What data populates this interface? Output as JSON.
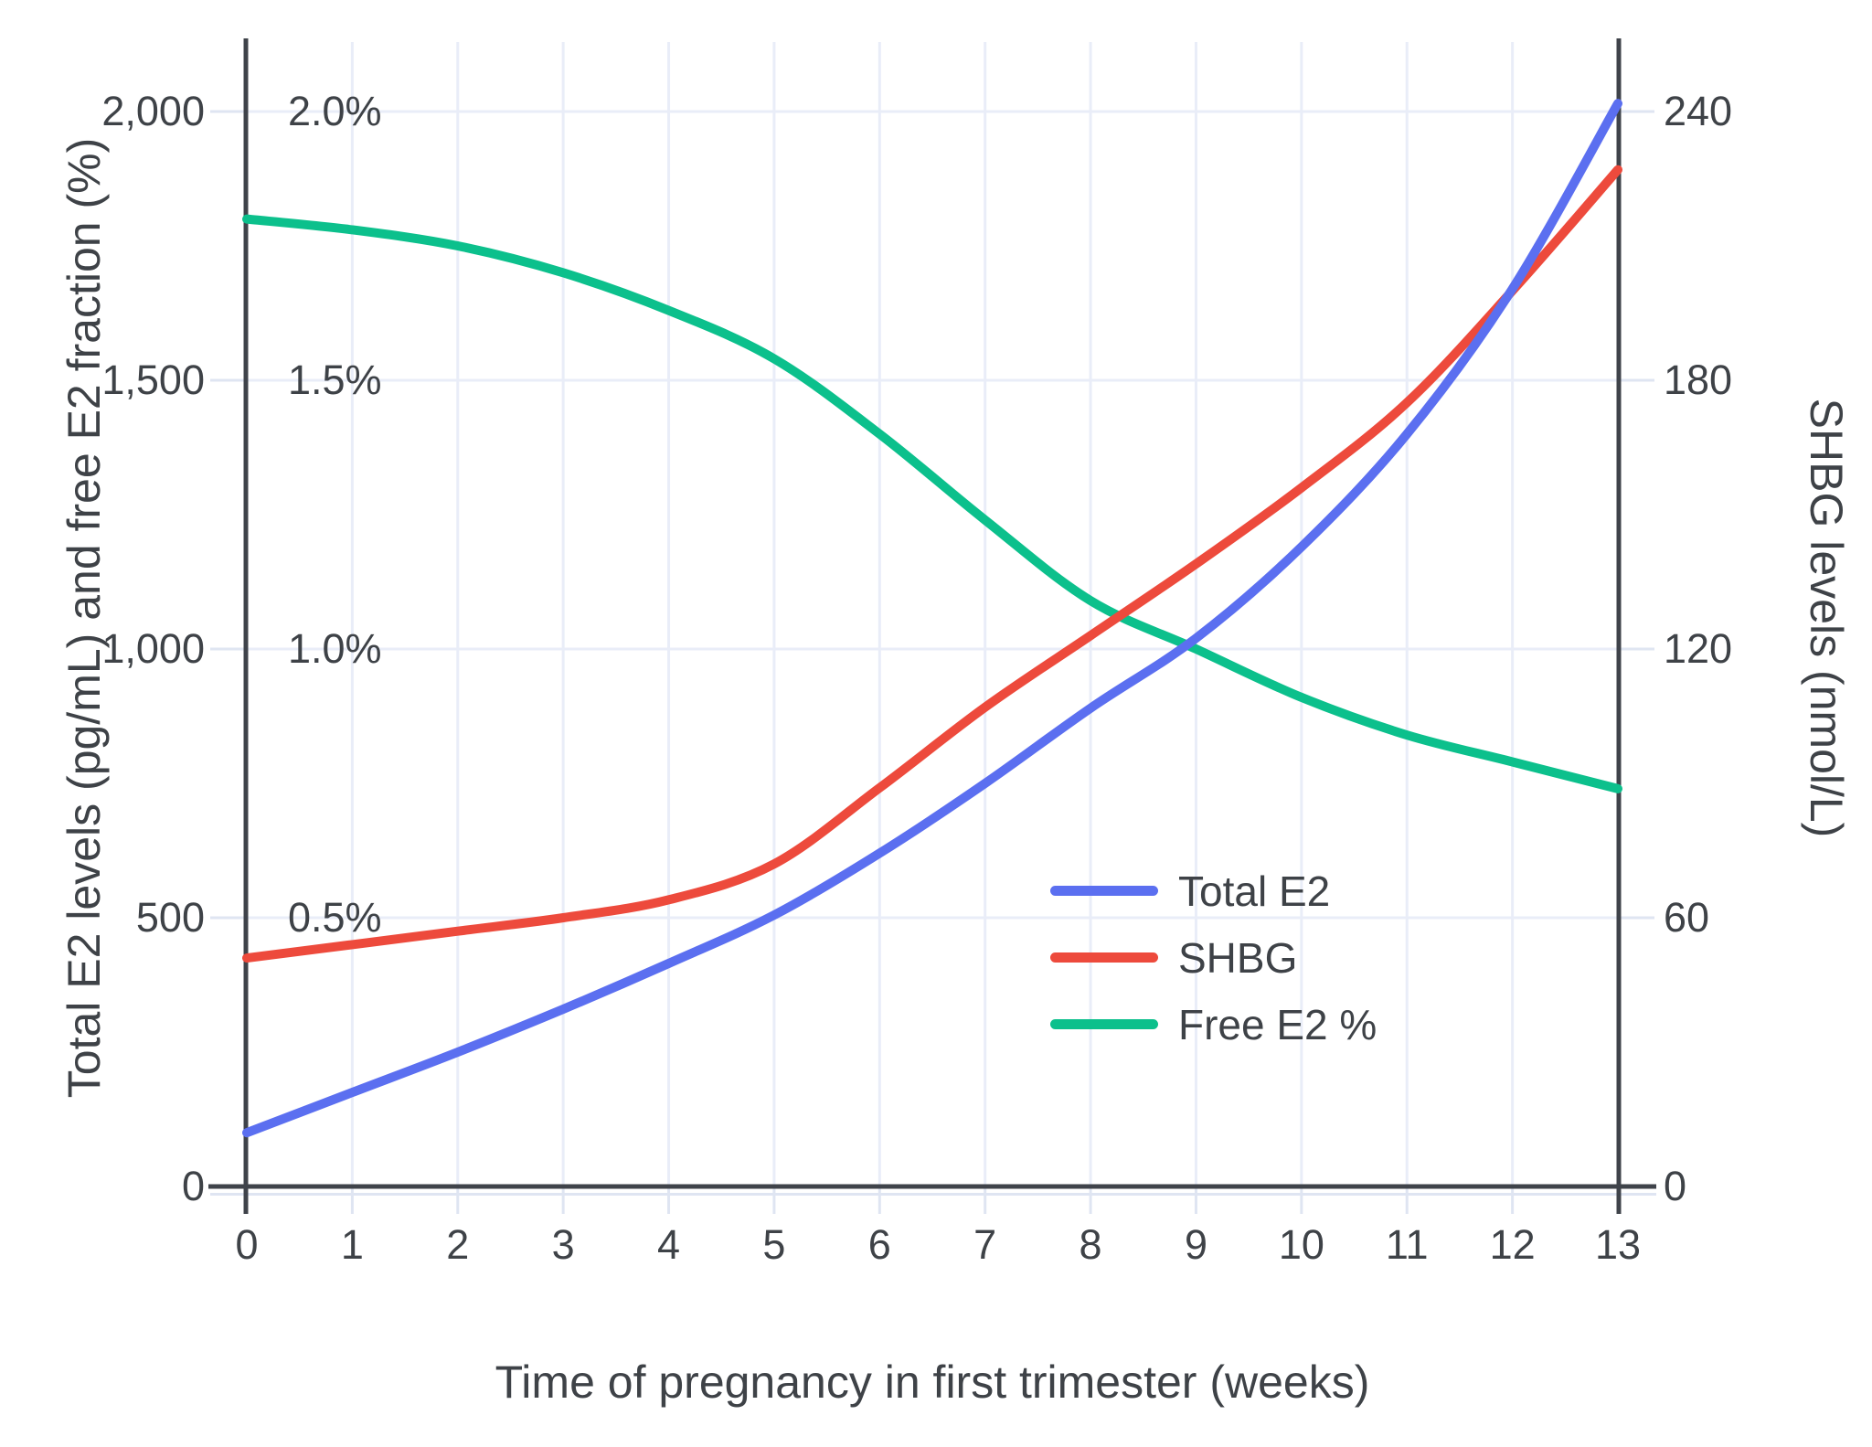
{
  "chart_data": {
    "type": "line",
    "x": [
      0,
      1,
      2,
      3,
      4,
      5,
      6,
      7,
      8,
      9,
      10,
      11,
      12,
      13
    ],
    "xlabel": "Time of pregnancy in first trimester (weeks)",
    "ylabel_left": "Total E2 levels (pg/mL) and free E2 fraction (%)",
    "ylabel_right": "SHBG levels (nmol/L)",
    "grid": true,
    "legend_position": "center-right",
    "series": [
      {
        "name": "Total E2",
        "axis": "left",
        "unit": "pg/mL",
        "color": "#5b6ff0",
        "values": [
          100,
          175,
          250,
          330,
          415,
          505,
          620,
          750,
          890,
          1020,
          1190,
          1400,
          1670,
          2015
        ]
      },
      {
        "name": "SHBG",
        "axis": "right",
        "unit": "nmol/L",
        "color": "#ed4a3c",
        "values": [
          51,
          54,
          57,
          60,
          64,
          72,
          89,
          107,
          123,
          139,
          156,
          175,
          200,
          227
        ]
      },
      {
        "name": "Free E2 %",
        "axis": "left-percent",
        "unit": "%",
        "color": "#0cc08c",
        "values": [
          1.8,
          1.78,
          1.75,
          1.7,
          1.63,
          1.54,
          1.4,
          1.24,
          1.09,
          1.0,
          0.91,
          0.84,
          0.79,
          0.74
        ]
      }
    ],
    "left_axis": {
      "tick_labels": [
        "0",
        "500",
        "1,000",
        "1,500",
        "2,000"
      ],
      "tick_values": [
        0,
        500,
        1000,
        1500,
        2000
      ],
      "range": [
        0,
        2135
      ]
    },
    "left_percent_labels": {
      "tick_labels": [
        "0.5%",
        "1.0%",
        "1.5%",
        "2.0%"
      ],
      "tick_values": [
        0.5,
        1.0,
        1.5,
        2.0
      ]
    },
    "right_axis": {
      "tick_labels": [
        "0",
        "60",
        "120",
        "180",
        "240"
      ],
      "tick_values": [
        0,
        60,
        120,
        180,
        240
      ],
      "range": [
        0,
        256
      ]
    },
    "x_axis": {
      "tick_labels": [
        "0",
        "1",
        "2",
        "3",
        "4",
        "5",
        "6",
        "7",
        "8",
        "9",
        "10",
        "11",
        "12",
        "13"
      ],
      "tick_values": [
        0,
        1,
        2,
        3,
        4,
        5,
        6,
        7,
        8,
        9,
        10,
        11,
        12,
        13
      ],
      "range": [
        0,
        13
      ]
    },
    "colors": {
      "grid": "#e9edf8",
      "tick": "#dfe5f2",
      "axis": "#3f434a",
      "text": "#3e4247",
      "background": "#ffffff"
    }
  }
}
